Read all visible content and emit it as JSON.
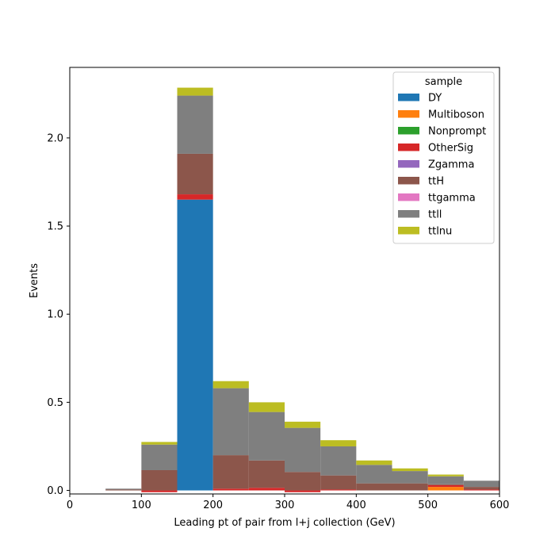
{
  "chart_data": {
    "type": "bar",
    "stacked": true,
    "title": "",
    "xlabel": "Leading pt of pair from l+j collection (GeV)",
    "ylabel": "Events",
    "xlim": [
      0,
      600
    ],
    "ylim": [
      -0.02,
      2.4
    ],
    "xticks": [
      "0",
      "100",
      "200",
      "300",
      "400",
      "500",
      "600"
    ],
    "yticks": [
      "0.0",
      "0.5",
      "1.0",
      "1.5",
      "2.0"
    ],
    "bin_edges": [
      50,
      100,
      150,
      200,
      250,
      300,
      350,
      400,
      450,
      500,
      550,
      600
    ],
    "legend": {
      "title": "sample",
      "placement": "top-right"
    },
    "series": [
      {
        "name": "DY",
        "color": "#1f77b4",
        "values": [
          0.0,
          0.0,
          1.65,
          0.0,
          0.0,
          0.0,
          0.0,
          0.0,
          0.0,
          0.0,
          0.0
        ]
      },
      {
        "name": "Multiboson",
        "color": "#ff7f0e",
        "values": [
          0.0,
          0.0,
          0.0,
          0.0,
          0.0,
          0.0,
          0.0,
          0.0,
          0.0,
          0.02,
          0.0
        ]
      },
      {
        "name": "Nonprompt",
        "color": "#2ca02c",
        "values": [
          0.0,
          0.0,
          0.0,
          0.0,
          0.0,
          0.0,
          0.0,
          0.0,
          0.0,
          0.0,
          0.0
        ]
      },
      {
        "name": "OtherSig",
        "color": "#d62728",
        "values": [
          0.0,
          -0.01,
          0.03,
          0.01,
          0.015,
          -0.01,
          0.005,
          0.0,
          0.0,
          0.01,
          0.005
        ]
      },
      {
        "name": "Zgamma",
        "color": "#9467bd",
        "values": [
          0.0,
          0.0,
          0.0,
          0.0,
          0.0,
          0.0,
          0.0,
          0.0,
          0.0,
          0.0,
          0.0
        ]
      },
      {
        "name": "ttH",
        "color": "#8c564b",
        "values": [
          0.005,
          0.115,
          0.23,
          0.19,
          0.155,
          0.105,
          0.08,
          0.04,
          0.04,
          0.005,
          0.015
        ]
      },
      {
        "name": "ttgamma",
        "color": "#e377c2",
        "values": [
          0.0,
          0.0,
          0.0,
          0.0,
          0.0,
          0.0,
          0.0,
          0.0,
          0.0,
          0.0,
          0.0
        ]
      },
      {
        "name": "ttll",
        "color": "#7f7f7f",
        "values": [
          0.005,
          0.145,
          0.33,
          0.38,
          0.275,
          0.25,
          0.165,
          0.105,
          0.07,
          0.045,
          0.035
        ]
      },
      {
        "name": "ttlnu",
        "color": "#bcbd22",
        "values": [
          0.0,
          0.015,
          0.045,
          0.04,
          0.055,
          0.035,
          0.035,
          0.025,
          0.015,
          0.01,
          0.0
        ]
      }
    ]
  }
}
